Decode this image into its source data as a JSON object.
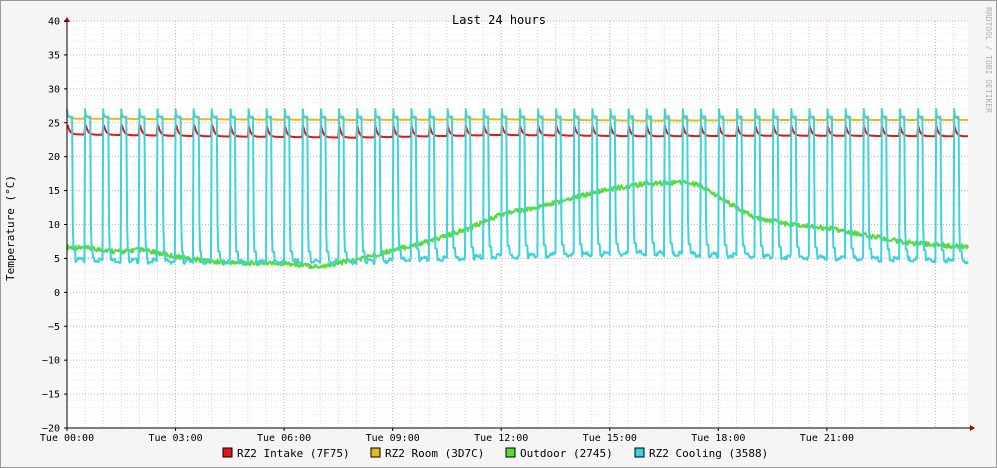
{
  "chart_data": {
    "type": "line",
    "title": "Last 24 hours",
    "ylabel": "Temperature (°C)",
    "watermark": "RRDTOOL / TOBI OETIKER",
    "ylim": [
      -20,
      40
    ],
    "xlim": [
      0,
      24.9
    ],
    "y_ticks": [
      40,
      35,
      30,
      25,
      20,
      15,
      10,
      5,
      0,
      -5,
      -10,
      -15,
      -20
    ],
    "x_ticks": [
      {
        "label": "Tue 00:00",
        "hour": 0
      },
      {
        "label": "Tue 03:00",
        "hour": 3
      },
      {
        "label": "Tue 06:00",
        "hour": 6
      },
      {
        "label": "Tue 09:00",
        "hour": 9
      },
      {
        "label": "Tue 12:00",
        "hour": 12
      },
      {
        "label": "Tue 15:00",
        "hour": 15
      },
      {
        "label": "Tue 18:00",
        "hour": 18
      },
      {
        "label": "Tue 21:00",
        "hour": 21
      }
    ],
    "grid": true,
    "legend_position": "bottom",
    "series": [
      {
        "name": "RZ2 Intake (7F75)",
        "color": "#e81414",
        "hours": [
          0,
          4,
          8,
          12,
          16,
          20,
          24.9
        ],
        "values": [
          23.3,
          23.0,
          22.8,
          23.2,
          23.0,
          23.1,
          23.0
        ],
        "cycle_period_hours": 0.5,
        "cycle_peak": 24.6
      },
      {
        "name": "RZ2 Room (3D7C)",
        "color": "#e6b91a",
        "hours": [
          0,
          4,
          8,
          12,
          16,
          20,
          24.9
        ],
        "values": [
          25.6,
          25.5,
          25.4,
          25.5,
          25.3,
          25.4,
          25.4
        ],
        "cycle_period_hours": 0.5,
        "cycle_peak": 26.2
      },
      {
        "name": "Outdoor (2745)",
        "color": "#55dc3c",
        "hours": [
          0,
          0.5,
          1.5,
          2,
          3,
          4,
          5,
          6,
          6.5,
          7,
          8,
          9,
          10,
          11,
          12,
          13,
          14,
          15,
          16,
          17,
          17.5,
          18,
          18.5,
          19,
          20,
          21,
          22,
          23,
          24,
          24.9
        ],
        "values": [
          6.7,
          6.5,
          6.0,
          6.3,
          5.3,
          4.5,
          4.3,
          4.3,
          4.0,
          3.8,
          4.8,
          6.2,
          7.5,
          9.2,
          11.5,
          12.5,
          14.0,
          15.2,
          16.0,
          16.2,
          15.8,
          14.0,
          12.5,
          11.0,
          10.0,
          9.5,
          8.5,
          7.5,
          7.0,
          6.7
        ]
      },
      {
        "name": "RZ2 Cooling (3588)",
        "color": "#3cd2de",
        "hours": [
          0,
          4,
          8,
          12,
          16,
          20,
          24.9
        ],
        "values": [
          4.8,
          4.5,
          4.5,
          5.3,
          5.8,
          5.2,
          4.6
        ],
        "cycle_period_hours": 0.5,
        "cycle_peak": 27.0
      }
    ]
  }
}
